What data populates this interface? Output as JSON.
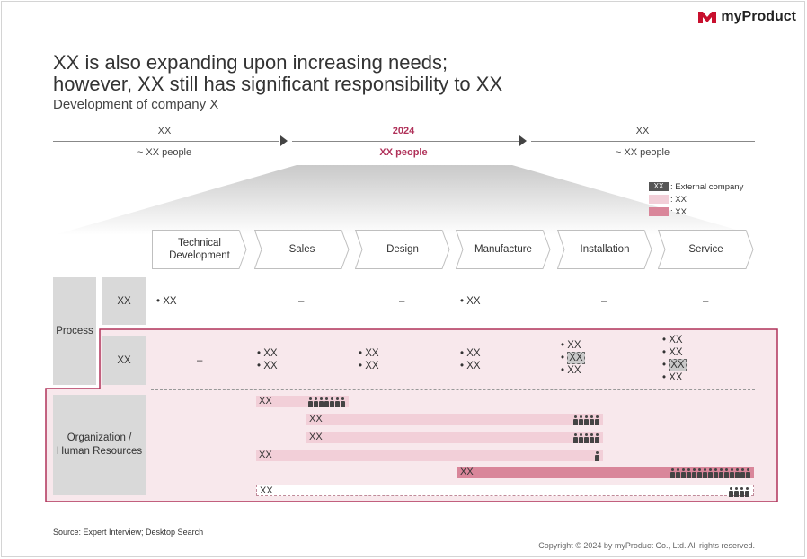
{
  "logo": {
    "text": "myProduct"
  },
  "title": {
    "line1": "XX is also expanding upon increasing needs;",
    "line2": "however, XX still has significant responsibility to XX"
  },
  "subtitle": "Development of company X",
  "timeline": [
    {
      "period": "XX",
      "people": "~ XX people",
      "highlight": false
    },
    {
      "period": "2024",
      "people": "XX people",
      "highlight": true
    },
    {
      "period": "XX",
      "people": "~ XX people",
      "highlight": false
    }
  ],
  "legend": [
    {
      "swatch": "XX",
      "label": ": External company"
    },
    {
      "swatch": "",
      "label": ": XX"
    },
    {
      "swatch": "",
      "label": ": XX"
    }
  ],
  "stages": [
    "Technical Development",
    "Sales",
    "Design",
    "Manufacture",
    "Installation",
    "Service"
  ],
  "process": {
    "label": "Process",
    "row1": {
      "label": "XX",
      "cells": [
        "• XX",
        "–",
        "–",
        "• XX",
        "–",
        "–"
      ]
    },
    "row2": {
      "label": "XX",
      "dash": "–",
      "sales": [
        "• XX",
        "• XX"
      ],
      "design": [
        "• XX",
        "• XX"
      ],
      "manufacture": [
        "• XX",
        "• XX"
      ],
      "installation": [
        "• XX",
        "XX",
        "• XX"
      ],
      "service": [
        "• XX",
        "• XX",
        "XX",
        "• XX"
      ]
    }
  },
  "org": {
    "label": "Organization / Human Resources",
    "bars": [
      {
        "label": "XX",
        "people": 7
      },
      {
        "label": "XX",
        "people": 5
      },
      {
        "label": "XX",
        "people": 5
      },
      {
        "label": "XX",
        "people": 1
      },
      {
        "label": "XX",
        "people": 15
      },
      {
        "label": "XX",
        "people": 4
      }
    ]
  },
  "footer": {
    "source": "Source: Expert Interview; Desktop Search",
    "copyright": "Copyright © 2024 by myProduct Co., Ltd.  All rights reserved."
  },
  "colors": {
    "accent": "#b0325a",
    "light_pink": "#f2cfd8",
    "mid_pink": "#d9869a",
    "grey": "#d9d9d9"
  }
}
